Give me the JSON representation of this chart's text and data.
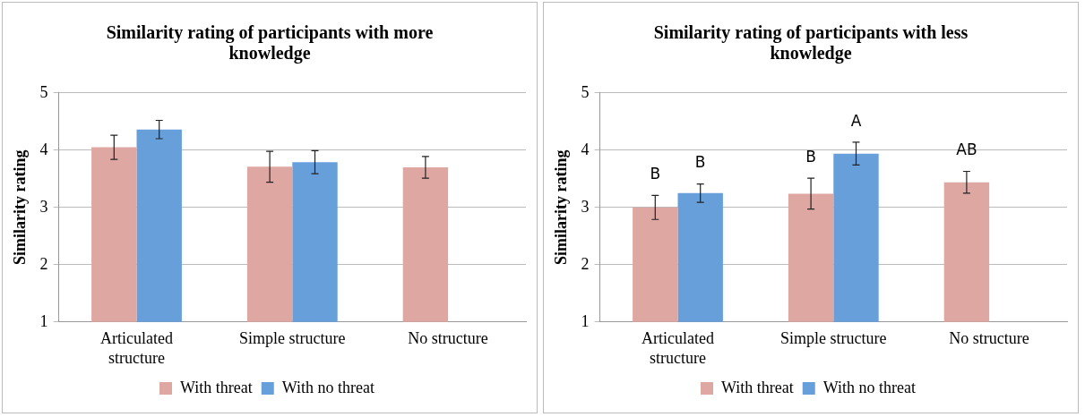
{
  "chart_data": [
    {
      "type": "bar",
      "title": "Similarity rating of participants with more knowledge",
      "ylabel": "Similarity rating",
      "categories": [
        "Articulated structure",
        "Simple structure",
        "No structure"
      ],
      "series": [
        {
          "name": "With threat",
          "color": "#dfa7a2",
          "values": [
            4.05,
            3.71,
            3.7
          ],
          "errors": [
            0.21,
            0.27,
            0.19
          ]
        },
        {
          "name": "With no threat",
          "color": "#679fdb",
          "values": [
            4.36,
            3.79,
            null
          ],
          "errors": [
            0.16,
            0.2,
            null
          ]
        }
      ],
      "ylim": [
        1,
        5
      ],
      "yticks": [
        1,
        2,
        3,
        4,
        5
      ],
      "grid": "y",
      "legend": "bottom"
    },
    {
      "type": "bar",
      "title": "Similarity rating of participants with less knowledge",
      "ylabel": "Similarity rating",
      "categories": [
        "Articulated structure",
        "Simple structure",
        "No structure"
      ],
      "series": [
        {
          "name": "With threat",
          "color": "#dfa7a2",
          "values": [
            3.0,
            3.24,
            3.44
          ],
          "errors": [
            0.21,
            0.27,
            0.19
          ]
        },
        {
          "name": "With no threat",
          "color": "#679fdb",
          "values": [
            3.25,
            3.94,
            null
          ],
          "errors": [
            0.16,
            0.2,
            null
          ]
        }
      ],
      "ylim": [
        1,
        5
      ],
      "yticks": [
        1,
        2,
        3,
        4,
        5
      ],
      "grid": "y",
      "legend": "bottom",
      "annotations": [
        "B",
        "B",
        "B",
        "A",
        "AB"
      ]
    }
  ]
}
